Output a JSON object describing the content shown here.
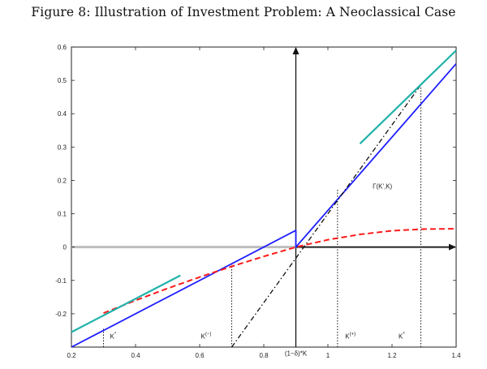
{
  "figure_title": "Figure 8: Illustration of Investment Problem: A Neoclassical Case",
  "chart_data": {
    "type": "line",
    "xlim": [
      0.2,
      1.4
    ],
    "ylim": [
      -0.3,
      0.6
    ],
    "x_ticks": [
      0.2,
      0.4,
      0.6,
      0.8,
      1.0,
      1.2,
      1.4
    ],
    "x_tick_labels": [
      "0.2",
      "0.4",
      "0.6",
      "0.8",
      "1",
      "1.2",
      "1.4"
    ],
    "y_ticks": [
      -0.2,
      -0.1,
      0,
      0.1,
      0.2,
      0.3,
      0.4,
      0.5,
      0.6
    ],
    "y_tick_labels": [
      "-0.2",
      "-0.1",
      "0",
      "0.1",
      "0.2",
      "0.3",
      "0.4",
      "0.5",
      "0.6"
    ],
    "origin": {
      "x": 0.9,
      "y": 0
    },
    "series": [
      {
        "key": "gamma",
        "style": "solid",
        "color": "#1f1fff",
        "x": [
          0.2,
          0.9,
          0.9,
          1.4
        ],
        "y": [
          -0.3,
          0.05,
          0.0,
          0.55
        ]
      },
      {
        "key": "dashdot",
        "style": "dashdot",
        "color": "#111111",
        "x": [
          0.7,
          1.3
        ],
        "y": [
          -0.3,
          0.5
        ]
      },
      {
        "key": "adjustment",
        "style": "dashed",
        "color": "#ff1a1a",
        "x": [
          0.3,
          0.4,
          0.5,
          0.6,
          0.7,
          0.8,
          0.9,
          1.0,
          1.1,
          1.2,
          1.3,
          1.4
        ],
        "y": [
          -0.198,
          -0.16,
          -0.124,
          -0.09,
          -0.058,
          -0.028,
          0.0,
          0.022,
          0.038,
          0.049,
          0.054,
          0.055
        ]
      },
      {
        "key": "tangent-low",
        "style": "solid",
        "color": "#20b2aa",
        "x": [
          0.2,
          0.54
        ],
        "y": [
          -0.255,
          -0.085
        ]
      },
      {
        "key": "tangent-high",
        "style": "solid",
        "color": "#20b2aa",
        "x": [
          1.1,
          1.4
        ],
        "y": [
          0.31,
          0.59
        ]
      }
    ],
    "reference_lines": [
      {
        "x": 0.3,
        "y_from": -0.3,
        "y_to": -0.245
      },
      {
        "x": 0.7,
        "y_from": -0.3,
        "y_to": -0.045
      },
      {
        "x": 1.03,
        "y_from": -0.3,
        "y_to": 0.175
      },
      {
        "x": 1.29,
        "y_from": -0.3,
        "y_to": 0.48
      }
    ],
    "annotations": [
      {
        "key": "k-star-low",
        "text": "K",
        "sup": "*",
        "x": 0.33,
        "y": -0.275
      },
      {
        "key": "k-minus",
        "text": "K",
        "sup": "(−)",
        "x": 0.62,
        "y": -0.275
      },
      {
        "key": "depreciated",
        "text": "(1−δ)*K",
        "x": 0.9,
        "y": -0.325
      },
      {
        "key": "k-plus",
        "text": "K",
        "sup": "(+)",
        "x": 1.07,
        "y": -0.275
      },
      {
        "key": "k-star-high",
        "text": "K",
        "sup": "*",
        "x": 1.23,
        "y": -0.275
      },
      {
        "key": "gamma-label",
        "text": "Γ(K',K)",
        "x": 1.17,
        "y": 0.175
      }
    ]
  }
}
